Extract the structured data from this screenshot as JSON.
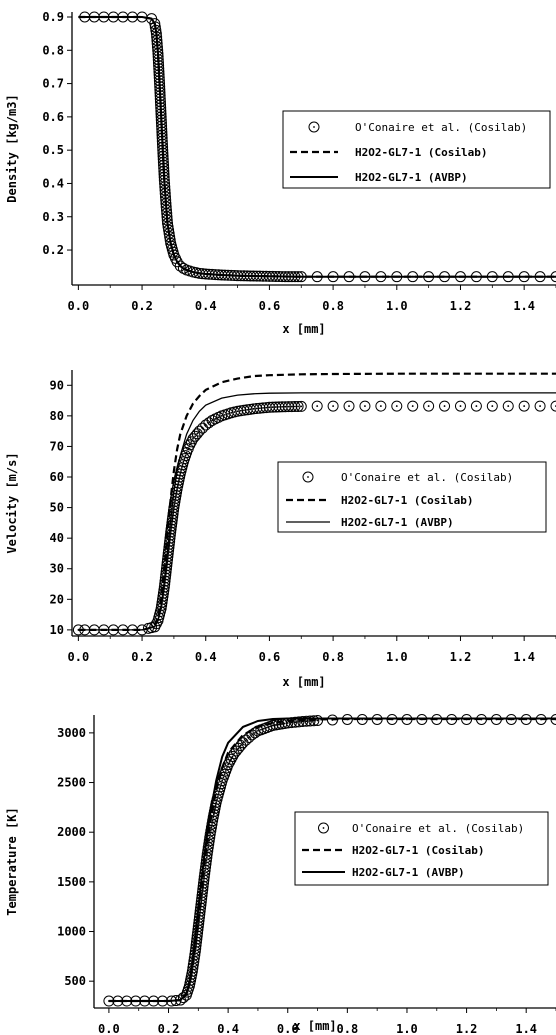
{
  "chart_data": [
    {
      "type": "line",
      "xlabel": "x [mm]",
      "ylabel": "Density [kg/m3]",
      "xlim": [
        -0.02,
        1.5
      ],
      "ylim": [
        0.095,
        0.915
      ],
      "xticks": [
        "0.0",
        "0.2",
        "0.4",
        "0.6",
        "0.8",
        "1.0",
        "1.2",
        "1.4"
      ],
      "xtick_values": [
        0.0,
        0.2,
        0.4,
        0.6,
        0.8,
        1.0,
        1.2,
        1.4
      ],
      "yticks": [
        "0.9",
        "0.8",
        "0.7",
        "0.6",
        "0.5",
        "0.4",
        "0.3",
        "0.2"
      ],
      "ytick_values": [
        0.9,
        0.8,
        0.7,
        0.6,
        0.5,
        0.4,
        0.3,
        0.2
      ],
      "legend_position": "right",
      "legend_border": "box",
      "series": [
        {
          "name": "O'Conaire et al. (Cosilab)",
          "style": "markers",
          "x": [
            0.02,
            0.05,
            0.08,
            0.11,
            0.14,
            0.17,
            0.2,
            0.23,
            0.24,
            0.245,
            0.25,
            0.255,
            0.26,
            0.265,
            0.27,
            0.275,
            0.28,
            0.29,
            0.3,
            0.31,
            0.32,
            0.33,
            0.34,
            0.36,
            0.38,
            0.4,
            0.45,
            0.5,
            0.55,
            0.6,
            0.65,
            0.7,
            0.75,
            0.8,
            0.85,
            0.9,
            0.95,
            1.0,
            1.05,
            1.1,
            1.15,
            1.2,
            1.25,
            1.3,
            1.35,
            1.4,
            1.45,
            1.5
          ],
          "y": [
            0.9,
            0.9,
            0.9,
            0.9,
            0.9,
            0.9,
            0.9,
            0.895,
            0.88,
            0.85,
            0.79,
            0.7,
            0.6,
            0.5,
            0.41,
            0.34,
            0.28,
            0.22,
            0.185,
            0.165,
            0.152,
            0.145,
            0.14,
            0.134,
            0.13,
            0.128,
            0.125,
            0.123,
            0.122,
            0.121,
            0.12,
            0.12,
            0.12,
            0.12,
            0.12,
            0.12,
            0.12,
            0.12,
            0.12,
            0.12,
            0.12,
            0.12,
            0.12,
            0.12,
            0.12,
            0.12,
            0.12,
            0.12
          ]
        },
        {
          "name": "H2O2-GL7-1 (Cosilab)",
          "style": "dashed",
          "x": [
            0.0,
            0.2,
            0.23,
            0.24,
            0.245,
            0.25,
            0.255,
            0.26,
            0.265,
            0.27,
            0.275,
            0.28,
            0.29,
            0.3,
            0.31,
            0.32,
            0.33,
            0.34,
            0.36,
            0.38,
            0.4,
            0.45,
            0.5,
            0.55,
            0.6,
            0.7,
            0.8,
            1.0,
            1.5
          ],
          "y": [
            0.9,
            0.9,
            0.895,
            0.88,
            0.85,
            0.79,
            0.7,
            0.6,
            0.5,
            0.41,
            0.34,
            0.28,
            0.22,
            0.185,
            0.165,
            0.152,
            0.145,
            0.14,
            0.134,
            0.13,
            0.128,
            0.125,
            0.123,
            0.122,
            0.121,
            0.12,
            0.12,
            0.12,
            0.12
          ]
        },
        {
          "name": "H2O2-GL7-1 (AVBP)",
          "style": "solid",
          "x": [
            0.0,
            0.2,
            0.23,
            0.24,
            0.245,
            0.25,
            0.255,
            0.26,
            0.265,
            0.27,
            0.275,
            0.28,
            0.29,
            0.3,
            0.31,
            0.32,
            0.33,
            0.34,
            0.36,
            0.38,
            0.4,
            0.45,
            0.5,
            0.55,
            0.6,
            0.7,
            0.8,
            1.0,
            1.5
          ],
          "y": [
            0.9,
            0.9,
            0.895,
            0.88,
            0.85,
            0.79,
            0.7,
            0.6,
            0.5,
            0.41,
            0.34,
            0.28,
            0.22,
            0.185,
            0.165,
            0.152,
            0.145,
            0.14,
            0.134,
            0.13,
            0.128,
            0.125,
            0.123,
            0.122,
            0.121,
            0.12,
            0.12,
            0.12,
            0.12
          ]
        }
      ]
    },
    {
      "type": "line",
      "xlabel": "x [mm]",
      "ylabel": "Velocity [m/s]",
      "xlim": [
        -0.02,
        1.5
      ],
      "ylim": [
        8,
        95
      ],
      "xticks": [
        "0.0",
        "0.2",
        "0.4",
        "0.6",
        "0.8",
        "1.0",
        "1.2",
        "1.4"
      ],
      "xtick_values": [
        0.0,
        0.2,
        0.4,
        0.6,
        0.8,
        1.0,
        1.2,
        1.4
      ],
      "yticks": [
        "90",
        "80",
        "70",
        "60",
        "50",
        "40",
        "30",
        "20",
        "10"
      ],
      "ytick_values": [
        90,
        80,
        70,
        60,
        50,
        40,
        30,
        20,
        10
      ],
      "legend_position": "right",
      "legend_border": "box",
      "series": [
        {
          "name": "O'Conaire et al. (Cosilab)",
          "style": "markers",
          "x": [
            0.0,
            0.02,
            0.05,
            0.08,
            0.11,
            0.14,
            0.17,
            0.2,
            0.22,
            0.24,
            0.25,
            0.26,
            0.27,
            0.28,
            0.29,
            0.3,
            0.31,
            0.32,
            0.33,
            0.34,
            0.35,
            0.36,
            0.38,
            0.4,
            0.42,
            0.45,
            0.48,
            0.5,
            0.55,
            0.6,
            0.65,
            0.7,
            0.75,
            0.8,
            0.85,
            0.9,
            0.95,
            1.0,
            1.05,
            1.1,
            1.15,
            1.2,
            1.25,
            1.3,
            1.35,
            1.4,
            1.45,
            1.5
          ],
          "y": [
            10,
            10,
            10,
            10,
            10,
            10,
            10,
            10,
            10.5,
            11,
            13,
            17,
            24,
            33,
            42,
            50,
            56,
            61,
            65,
            68,
            70.5,
            72.5,
            75,
            77,
            78.5,
            80,
            81,
            81.5,
            82.3,
            82.8,
            83,
            83.1,
            83.2,
            83.2,
            83.2,
            83.2,
            83.2,
            83.2,
            83.2,
            83.2,
            83.2,
            83.2,
            83.2,
            83.2,
            83.2,
            83.2,
            83.2,
            83.2
          ]
        },
        {
          "name": "H2O2-GL7-1 (Cosilab)",
          "style": "dashed",
          "x": [
            0.0,
            0.2,
            0.22,
            0.24,
            0.25,
            0.26,
            0.27,
            0.28,
            0.29,
            0.3,
            0.31,
            0.32,
            0.34,
            0.36,
            0.38,
            0.4,
            0.45,
            0.5,
            0.55,
            0.6,
            0.7,
            0.8,
            1.0,
            1.2,
            1.5
          ],
          "y": [
            10,
            10,
            10.5,
            11.5,
            14,
            20,
            30,
            42,
            53,
            62,
            69,
            74,
            80,
            84,
            86.5,
            88.5,
            91,
            92.2,
            93,
            93.3,
            93.6,
            93.7,
            93.8,
            93.8,
            93.8
          ]
        },
        {
          "name": "H2O2-GL7-1 (AVBP)",
          "style": "solid",
          "x": [
            0.0,
            0.2,
            0.22,
            0.24,
            0.25,
            0.26,
            0.27,
            0.28,
            0.29,
            0.3,
            0.31,
            0.32,
            0.34,
            0.36,
            0.38,
            0.4,
            0.45,
            0.5,
            0.55,
            0.6,
            0.7,
            0.8,
            1.0,
            1.2,
            1.5
          ],
          "y": [
            10,
            10,
            10.5,
            11.2,
            13,
            18,
            26,
            36,
            46,
            55,
            62,
            67,
            74,
            78.5,
            81.5,
            83.5,
            85.8,
            86.8,
            87.2,
            87.4,
            87.5,
            87.5,
            87.5,
            87.5,
            87.5
          ]
        }
      ]
    },
    {
      "type": "line",
      "xlabel": "x [mm]",
      "ylabel": "Temperature [K]",
      "xlim": [
        -0.05,
        1.5
      ],
      "ylim": [
        230,
        3180
      ],
      "xticks": [
        "0.0",
        "0.2",
        "0.4",
        "0.6",
        "0.8",
        "1.0",
        "1.2",
        "1.4"
      ],
      "xtick_values": [
        0.0,
        0.2,
        0.4,
        0.6,
        0.8,
        1.0,
        1.2,
        1.4
      ],
      "yticks": [
        "3000",
        "2500",
        "2000",
        "1500",
        "1000",
        "500"
      ],
      "ytick_values": [
        3000,
        2500,
        2000,
        1500,
        1000,
        500
      ],
      "legend_position": "right",
      "legend_border": "box",
      "series": [
        {
          "name": "O'Conaire et al. (Cosilab)",
          "style": "markers",
          "x": [
            0.0,
            0.03,
            0.06,
            0.09,
            0.12,
            0.15,
            0.18,
            0.21,
            0.24,
            0.26,
            0.27,
            0.28,
            0.29,
            0.3,
            0.31,
            0.32,
            0.33,
            0.34,
            0.35,
            0.36,
            0.38,
            0.4,
            0.42,
            0.45,
            0.48,
            0.5,
            0.55,
            0.6,
            0.65,
            0.7,
            0.75,
            0.8,
            0.85,
            0.9,
            0.95,
            1.0,
            1.05,
            1.1,
            1.15,
            1.2,
            1.25,
            1.3,
            1.35,
            1.4,
            1.45,
            1.5
          ],
          "y": [
            300,
            300,
            300,
            300,
            300,
            300,
            300,
            300,
            310,
            360,
            450,
            600,
            800,
            1050,
            1300,
            1550,
            1780,
            1980,
            2150,
            2300,
            2520,
            2680,
            2790,
            2900,
            2980,
            3020,
            3075,
            3100,
            3115,
            3125,
            3130,
            3135,
            3135,
            3135,
            3135,
            3135,
            3135,
            3135,
            3135,
            3135,
            3135,
            3135,
            3135,
            3135,
            3135,
            3135
          ]
        },
        {
          "name": "H2O2-GL7-1 (Cosilab)",
          "style": "dashed",
          "x": [
            0.0,
            0.2,
            0.24,
            0.26,
            0.27,
            0.28,
            0.29,
            0.3,
            0.31,
            0.32,
            0.33,
            0.34,
            0.36,
            0.38,
            0.4,
            0.45,
            0.5,
            0.55,
            0.6,
            0.7,
            0.8,
            1.0,
            1.5
          ],
          "y": [
            300,
            300,
            310,
            370,
            480,
            650,
            880,
            1150,
            1420,
            1680,
            1900,
            2100,
            2420,
            2650,
            2800,
            2980,
            3060,
            3100,
            3120,
            3135,
            3140,
            3140,
            3140
          ]
        },
        {
          "name": "H2O2-GL7-1 (AVBP)",
          "style": "solid",
          "x": [
            0.0,
            0.2,
            0.24,
            0.26,
            0.27,
            0.28,
            0.29,
            0.3,
            0.31,
            0.32,
            0.33,
            0.34,
            0.36,
            0.38,
            0.4,
            0.45,
            0.5,
            0.55,
            0.6,
            0.7,
            0.8,
            1.0,
            1.5
          ],
          "y": [
            300,
            300,
            310,
            380,
            500,
            690,
            940,
            1220,
            1500,
            1760,
            1990,
            2190,
            2520,
            2760,
            2900,
            3060,
            3120,
            3140,
            3145,
            3145,
            3145,
            3145,
            3145
          ]
        }
      ]
    }
  ]
}
